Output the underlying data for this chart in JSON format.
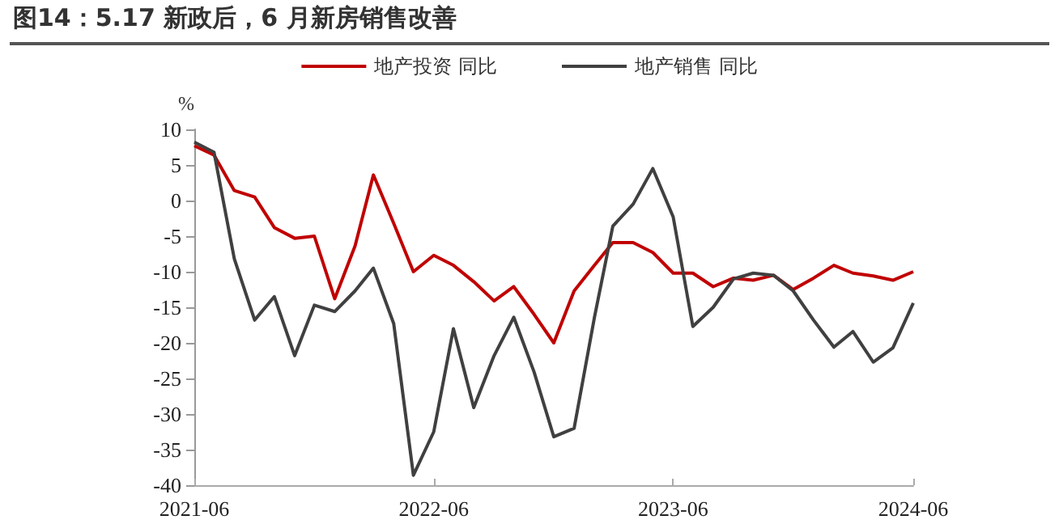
{
  "chart_data": {
    "type": "line",
    "title": "图14：5.17 新政后，6 月新房销售改善",
    "ylabel": "%",
    "x": [
      "2021-06",
      "2021-07",
      "2021-08",
      "2021-09",
      "2021-10",
      "2021-11",
      "2021-12",
      "2022-01",
      "2022-02",
      "2022-03",
      "2022-04",
      "2022-05",
      "2022-06",
      "2022-07",
      "2022-08",
      "2022-09",
      "2022-10",
      "2022-11",
      "2022-12",
      "2023-01",
      "2023-02",
      "2023-03",
      "2023-04",
      "2023-05",
      "2023-06",
      "2023-07",
      "2023-08",
      "2023-09",
      "2023-10",
      "2023-11",
      "2023-12",
      "2024-01",
      "2024-02",
      "2024-03",
      "2024-04",
      "2024-05",
      "2024-06"
    ],
    "series": [
      {
        "name": "地产投资 同比",
        "color": "#c00000",
        "values": [
          7.7,
          6.4,
          1.4,
          0.5,
          -3.8,
          -5.3,
          -5,
          -13.8,
          -6.4,
          3.6,
          -3.2,
          -10,
          -7.7,
          -9.1,
          -11.4,
          -14.1,
          -12.1,
          -16,
          -20,
          -12.7,
          -9.1,
          -5.9,
          -5.9,
          -7.3,
          -10.2,
          -10.2,
          -12.1,
          -10.9,
          -11.2,
          -10.5,
          -12.5,
          -10.9,
          -9.1,
          -10.2,
          -10.6,
          -11.2,
          -10
        ]
      },
      {
        "name": "地产销售 同比",
        "color": "#404040",
        "values": [
          8.2,
          6.8,
          -8.2,
          -16.8,
          -13.5,
          -21.8,
          -14.7,
          -15.6,
          -12.7,
          -9.5,
          -17.3,
          -38.6,
          -32.5,
          -18,
          -29.1,
          -21.8,
          -16.4,
          -24.1,
          -33.2,
          -32,
          -16.4,
          -3.6,
          -0.5,
          4.5,
          -2.3,
          -17.7,
          -15,
          -11,
          -10.2,
          -10.5,
          -12.7,
          -16.8,
          -20.6,
          -18.4,
          -22.7,
          -20.7,
          -14.4
        ]
      }
    ],
    "xlim": [
      "2021-06",
      "2024-06"
    ],
    "xticks": [
      "2021-06",
      "2022-06",
      "2023-06",
      "2024-06"
    ],
    "ylim": [
      -40,
      10
    ],
    "yticks": [
      -40,
      -35,
      -30,
      -25,
      -20,
      -15,
      -10,
      -5,
      0,
      5,
      10
    ],
    "legend": "top",
    "grid": false,
    "marker": "none",
    "line_style": "solid"
  }
}
